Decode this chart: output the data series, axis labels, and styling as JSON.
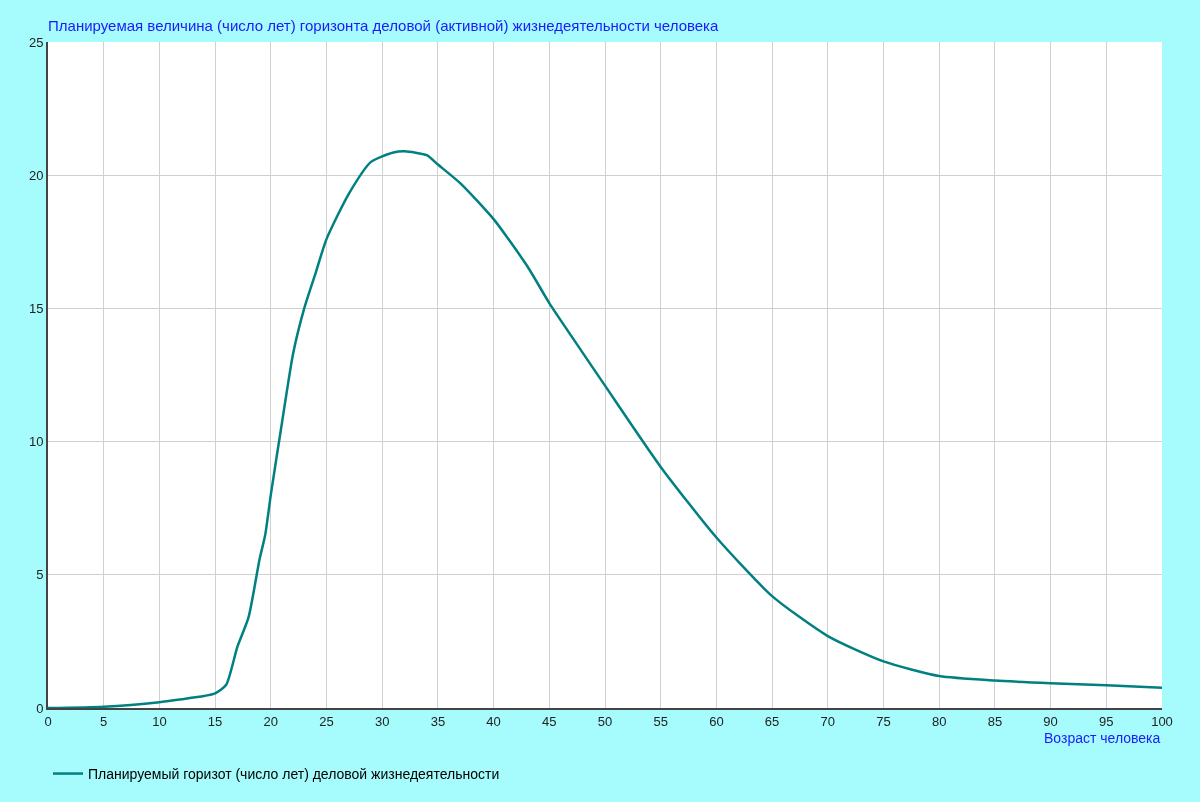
{
  "chart_data": {
    "type": "line",
    "title": "Планируемая величина (число лет) горизонта деловой (активной) жизнедеятельности человека",
    "xlabel": "Возраст человека",
    "x": [
      0,
      5,
      10,
      12,
      14,
      15,
      16,
      17,
      18,
      19,
      19.5,
      20,
      21,
      22,
      23,
      24,
      25,
      27,
      29,
      31,
      32,
      34,
      35,
      37,
      40,
      43,
      45,
      47,
      50,
      55,
      60,
      65,
      70,
      75,
      80,
      85,
      90,
      95,
      100
    ],
    "series": [
      {
        "name": "Планируемый горизот (число лет) деловой жизнедеятельности",
        "color": "#008080",
        "values": [
          0,
          0.05,
          0.22,
          0.33,
          0.45,
          0.55,
          0.87,
          2.3,
          3.4,
          5.6,
          6.5,
          8.0,
          10.7,
          13.3,
          15.0,
          16.3,
          17.6,
          19.3,
          20.5,
          20.85,
          20.9,
          20.75,
          20.4,
          19.7,
          18.35,
          16.6,
          15.2,
          13.95,
          12.1,
          9.05,
          6.4,
          4.2,
          2.7,
          1.75,
          1.2,
          1.03,
          0.93,
          0.85,
          0.76
        ]
      }
    ],
    "xlim": [
      0,
      100
    ],
    "xticks": [
      0,
      5,
      10,
      15,
      20,
      25,
      30,
      35,
      40,
      45,
      50,
      55,
      60,
      65,
      70,
      75,
      80,
      85,
      90,
      95,
      100
    ],
    "ylim": [
      0,
      25
    ],
    "yticks": [
      0,
      5,
      10,
      15,
      20,
      25
    ],
    "grid": true,
    "legend": "bottom left",
    "marker": "none",
    "line_style": "solid"
  }
}
